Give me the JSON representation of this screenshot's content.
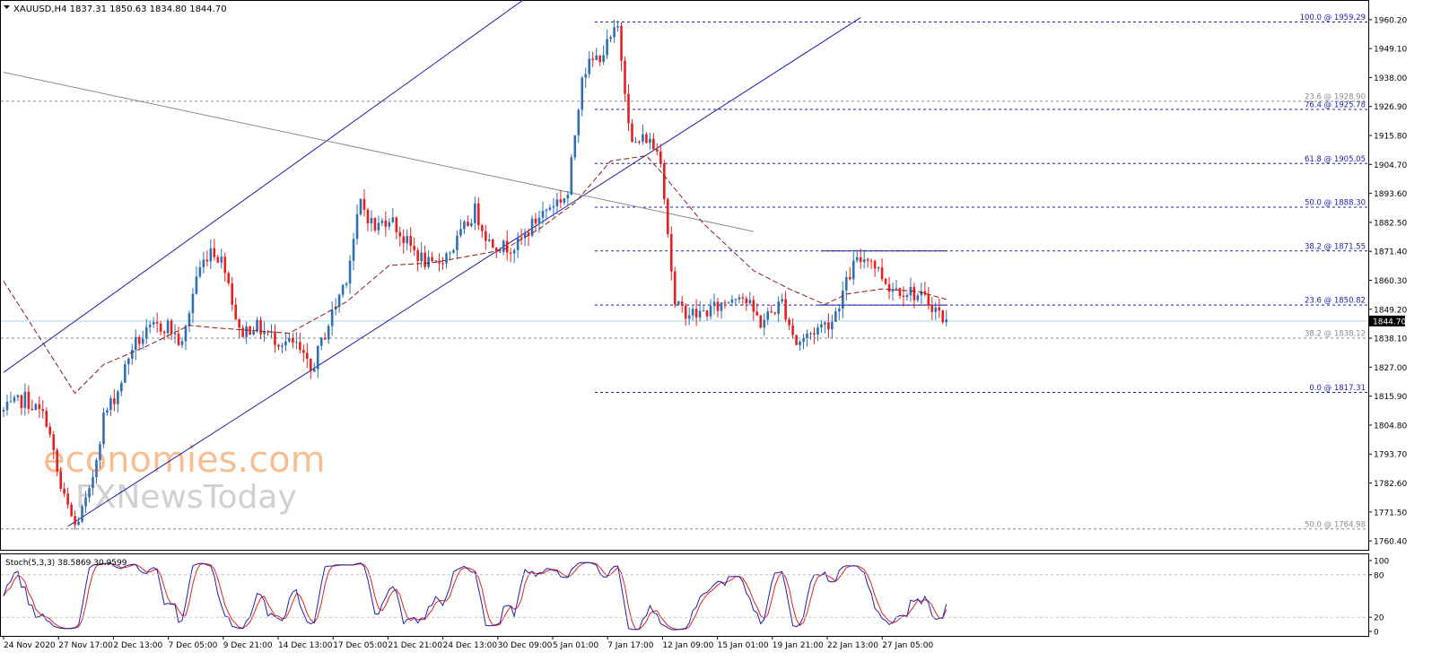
{
  "header": {
    "symbol_line": "XAUUSD,H4  1837.31 1850.63 1834.80 1844.70",
    "dropdown_icon": "triangle-down-icon"
  },
  "watermark": {
    "line1": "economies.com",
    "line2": "FXNewsToday"
  },
  "colors": {
    "bull": "#2E6FB5",
    "bear": "#E5201E",
    "channel": "#1F1FA8",
    "trendline": "#8C8C8C",
    "ma": "#8B1A1A",
    "fib": "#1F1FA8",
    "fib_faded": "#8C8C8C",
    "stoch_main": "#1F1FA8",
    "stoch_signal": "#E5201E",
    "price_line": "#A9D6EA"
  },
  "chart_data": [
    {
      "type": "candlestick",
      "title": "XAUUSD,H4",
      "ohlc_readout": {
        "open": 1837.31,
        "high": 1850.63,
        "low": 1834.8,
        "close": 1844.7
      },
      "current_price": 1844.7,
      "current_price_label": "1844.70",
      "ylim": [
        1757.0,
        1966.0
      ],
      "y_ticks": [
        1960.2,
        1949.1,
        1938.0,
        1926.9,
        1915.8,
        1904.7,
        1893.6,
        1882.5,
        1871.4,
        1860.3,
        1849.2,
        1838.1,
        1827.0,
        1815.9,
        1804.8,
        1793.7,
        1782.6,
        1771.5,
        1760.4
      ],
      "y_tick_labels": [
        "1960.20",
        "1949.10",
        "1938.00",
        "1926.90",
        "1915.80",
        "1904.70",
        "1893.60",
        "1882.50",
        "1871.40",
        "1860.30",
        "1849.20",
        "1838.10",
        "1827.00",
        "1815.90",
        "1804.80",
        "1793.70",
        "1782.60",
        "1771.50",
        "1760.40"
      ],
      "x_ticks": [
        "24 Nov 2020",
        "27 Nov 17:00",
        "2 Dec 13:00",
        "7 Dec 05:00",
        "9 Dec 21:00",
        "14 Dec 13:00",
        "17 Dec 05:00",
        "21 Dec 21:00",
        "24 Dec 13:00",
        "30 Dec 09:00",
        "5 Jan 01:00",
        "7 Jan 17:00",
        "12 Jan 09:00",
        "15 Jan 01:00",
        "19 Jan 21:00",
        "22 Jan 13:00",
        "27 Jan 05:00"
      ],
      "bar_count": 204,
      "anchors": [
        [
          0,
          1810
        ],
        [
          6,
          1815
        ],
        [
          12,
          1807
        ],
        [
          16,
          1780
        ],
        [
          20,
          1766
        ],
        [
          24,
          1778
        ],
        [
          28,
          1808
        ],
        [
          32,
          1818
        ],
        [
          36,
          1835
        ],
        [
          42,
          1842
        ],
        [
          46,
          1843
        ],
        [
          50,
          1835
        ],
        [
          54,
          1862
        ],
        [
          58,
          1873
        ],
        [
          62,
          1866
        ],
        [
          66,
          1840
        ],
        [
          70,
          1843
        ],
        [
          76,
          1838
        ],
        [
          82,
          1835
        ],
        [
          86,
          1825
        ],
        [
          90,
          1840
        ],
        [
          96,
          1862
        ],
        [
          100,
          1890
        ],
        [
          104,
          1880
        ],
        [
          108,
          1885
        ],
        [
          112,
          1876
        ],
        [
          116,
          1870
        ],
        [
          120,
          1865
        ],
        [
          126,
          1873
        ],
        [
          132,
          1887
        ],
        [
          136,
          1875
        ],
        [
          140,
          1873
        ],
        [
          144,
          1874
        ],
        [
          150,
          1885
        ],
        [
          154,
          1890
        ],
        [
          158,
          1893
        ],
        [
          162,
          1940
        ],
        [
          168,
          1948
        ],
        [
          172,
          1957
        ],
        [
          176,
          1912
        ],
        [
          180,
          1915
        ],
        [
          184,
          1908
        ],
        [
          188,
          1850
        ],
        [
          194,
          1847
        ],
        [
          200,
          1850
        ],
        [
          206,
          1856
        ],
        [
          212,
          1844
        ],
        [
          218,
          1852
        ],
        [
          222,
          1836
        ],
        [
          228,
          1842
        ],
        [
          232,
          1845
        ],
        [
          238,
          1866
        ],
        [
          242,
          1870
        ],
        [
          248,
          1858
        ],
        [
          254,
          1856
        ],
        [
          260,
          1851
        ],
        [
          264,
          1844
        ]
      ],
      "moving_average": [
        [
          0,
          1860
        ],
        [
          20,
          1817
        ],
        [
          28,
          1828
        ],
        [
          40,
          1835
        ],
        [
          52,
          1843
        ],
        [
          60,
          1842
        ],
        [
          80,
          1840
        ],
        [
          96,
          1852
        ],
        [
          108,
          1866
        ],
        [
          120,
          1867
        ],
        [
          140,
          1872
        ],
        [
          150,
          1880
        ],
        [
          160,
          1890
        ],
        [
          170,
          1906
        ],
        [
          180,
          1908
        ],
        [
          184,
          1902
        ],
        [
          196,
          1882
        ],
        [
          210,
          1864
        ],
        [
          220,
          1857
        ],
        [
          230,
          1851
        ],
        [
          236,
          1855
        ],
        [
          246,
          1857
        ],
        [
          256,
          1856
        ],
        [
          264,
          1853
        ]
      ],
      "channel_upper": [
        [
          0,
          1825
        ],
        [
          158,
          1980
        ]
      ],
      "channel_lower": [
        [
          18,
          1766
        ],
        [
          240,
          1961
        ]
      ],
      "trendline_descending": [
        [
          0,
          1940
        ],
        [
          210,
          1879
        ]
      ],
      "resistance_line": [
        [
          229,
          1871.55
        ],
        [
          264,
          1871.55
        ]
      ],
      "support_line": [
        [
          228,
          1850.8
        ],
        [
          264,
          1850.8
        ]
      ],
      "fib_right": [
        {
          "label": "100.0 @ 1959.29",
          "price": 1959.29
        },
        {
          "label": "76.4 @ 1925.78",
          "price": 1925.78
        },
        {
          "label": "61.8 @ 1905.05",
          "price": 1905.05
        },
        {
          "label": "50.0 @ 1888.30",
          "price": 1888.3
        },
        {
          "label": "38.2 @ 1871.55",
          "price": 1871.55
        },
        {
          "label": "23.6 @ 1850.82",
          "price": 1850.82
        },
        {
          "label": "0.0 @ 1817.31",
          "price": 1817.31
        }
      ],
      "fib_faded": [
        {
          "label": "23.6 @ 1928.90",
          "price": 1928.9
        },
        {
          "label": "38.2 @ 1838.12",
          "price": 1838.12
        },
        {
          "label": "50.0 @ 1764.98",
          "price": 1764.98
        }
      ]
    },
    {
      "type": "line",
      "title": "Stoch(5,3,3) 38.5869 30.9599",
      "ylim": [
        0,
        100
      ],
      "y_ticks": [
        100,
        80,
        20,
        0
      ],
      "y_tick_labels": [
        "100",
        "80",
        "20",
        "0"
      ],
      "series": [
        {
          "name": "Stoch(5,3,3) main",
          "last_value": 38.5869
        },
        {
          "name": "Stoch(5,3,3) signal",
          "last_value": 30.9599
        }
      ]
    }
  ]
}
